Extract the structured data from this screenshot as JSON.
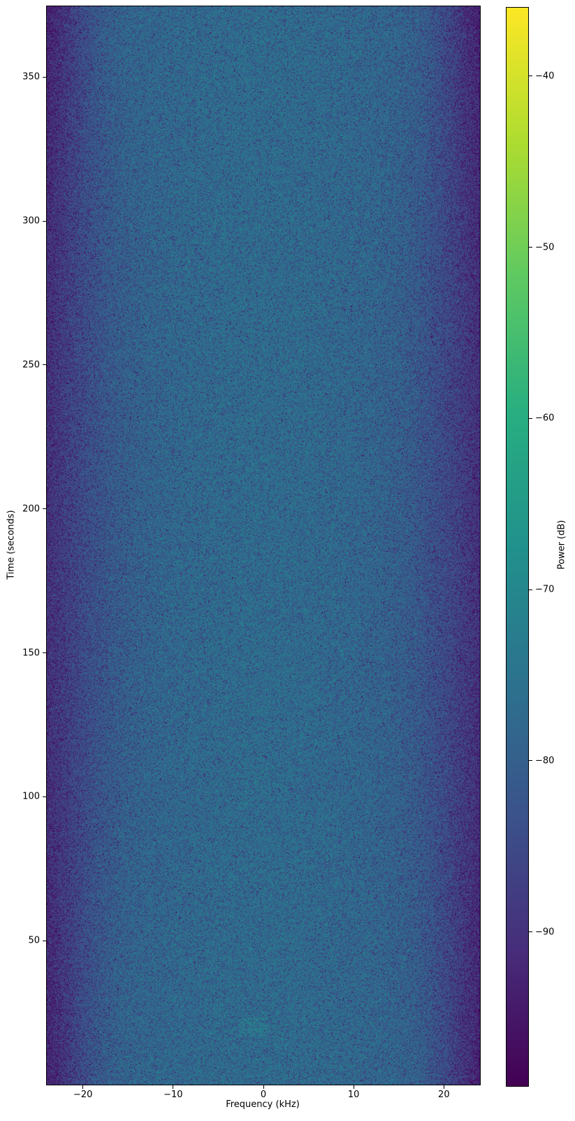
{
  "chart_data": {
    "type": "heatmap",
    "subtype": "spectrogram",
    "title": "",
    "xlabel": "Frequency (kHz)",
    "ylabel": "Time (seconds)",
    "x_range": [
      -24,
      24
    ],
    "y_range": [
      0,
      374.6
    ],
    "x_ticks": [
      -20,
      -10,
      0,
      10,
      20
    ],
    "x_tick_labels": [
      "−20",
      "−10",
      "0",
      "10",
      "20"
    ],
    "y_ticks": [
      50,
      100,
      150,
      200,
      250,
      300,
      350
    ],
    "y_tick_labels": [
      "50",
      "100",
      "150",
      "200",
      "250",
      "300",
      "350"
    ],
    "grid": false,
    "colormap": "viridis",
    "colorbar": {
      "label": "Power (dB)",
      "position": "right",
      "vmax_top_db": -36,
      "vmin_bottom_db": -99,
      "ticks": [
        -40,
        -50,
        -60,
        -70,
        -80,
        -90
      ],
      "tick_labels": [
        "−40",
        "−50",
        "−60",
        "−70",
        "−80",
        "−90"
      ]
    },
    "noise_model": {
      "base_power_db": -76.5,
      "floor_power_db": -97,
      "speckle": "exponential",
      "edge_rolloff_center_khz": 18.3,
      "edge_rolloff_center_waist_khz": 16.8,
      "edge_rolloff_width_khz": 1.5,
      "edge_rolloff_width_waist_khz": 2.6,
      "center_boost_db": 1.3,
      "center_boost_sigma_khz": 7.5
    },
    "features": [
      {
        "name": "broadband-pulse-comb",
        "pattern": "horizontal-comb",
        "time_s": [
          17,
          23.5
        ],
        "freq_khz": [
          -2.9,
          0.6
        ],
        "power_db": -69
      },
      {
        "name": "narrowband-wisps",
        "pattern": "wavy-vertical-traces",
        "time_s": [
          97,
          112
        ],
        "freq_khz": [
          -2.3,
          1.3
        ],
        "power_db": -69.5,
        "trace_freqs_khz": [
          -2.05,
          -1.5,
          -0.9,
          -0.35,
          0.3,
          0.95
        ]
      }
    ],
    "viridis_anchors": [
      "#440154",
      "#472d7b",
      "#3b528b",
      "#2c728e",
      "#21918c",
      "#28ae80",
      "#5ec962",
      "#addc30",
      "#fde725"
    ]
  }
}
